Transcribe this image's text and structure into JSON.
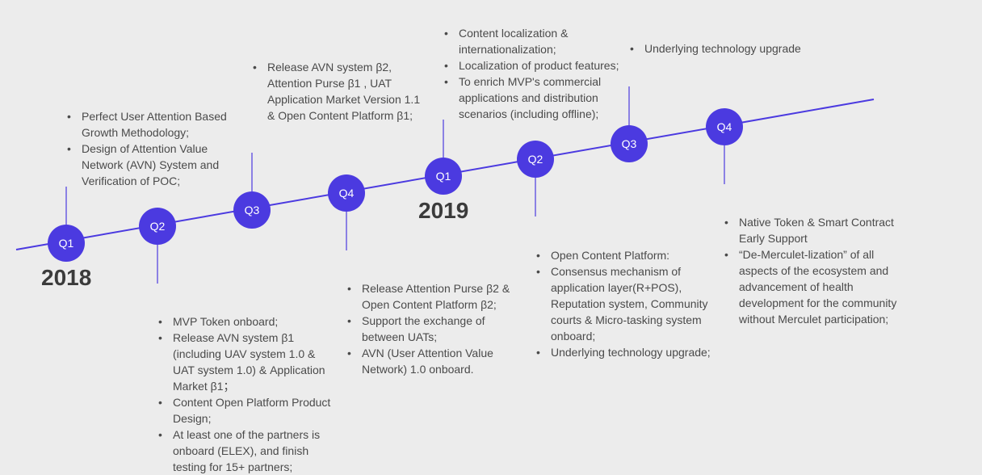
{
  "colors": {
    "accent": "#4b3ae0",
    "background": "#ececec",
    "text": "#4a4a4a"
  },
  "years": {
    "y2018": "2018",
    "y2019": "2019"
  },
  "quarters": {
    "q1_2018": "Q1",
    "q2_2018": "Q2",
    "q3_2018": "Q3",
    "q4_2018": "Q4",
    "q1_2019": "Q1",
    "q2_2019": "Q2",
    "q3_2019": "Q3",
    "q4_2019": "Q4"
  },
  "notes": {
    "q1_2018": [
      "Perfect User Attention Based Growth Methodology;",
      "Design of Attention Value Network (AVN) System and Verification of POC;"
    ],
    "q2_2018": [
      "MVP Token onboard;",
      "Release AVN system β1 (including UAV system 1.0 & UAT system 1.0) & Application Market β1；",
      "Content Open Platform Product Design;",
      "At least one of the partners is onboard (ELEX), and finish testing for 15+ partners;"
    ],
    "q3_2018": [
      "Release AVN system β2, Attention Purse β1 , UAT Application Market Version 1.1 & Open Content Platform β1;"
    ],
    "q4_2018": [
      "Release Attention Purse β2 & Open Content Platform β2;",
      "Support the exchange of between UATs;",
      "AVN (User Attention Value Network) 1.0 onboard."
    ],
    "q1_2019": [
      "Content localization & internationalization;",
      "Localization of product features;",
      "To enrich MVP's commercial applications and distribution scenarios (including offline);"
    ],
    "q2_2019": [
      "Open Content Platform:",
      "Consensus mechanism of application layer(R+POS), Reputation system, Community courts & Micro-tasking system onboard;",
      "Underlying technology upgrade;"
    ],
    "q3_2019": [
      "Underlying technology upgrade"
    ],
    "q4_2019": [
      "Native Token & Smart Contract Early Support",
      "“De-Merculet-lization” of all aspects of the ecosystem and advancement of health development for the community without Merculet participation;"
    ]
  }
}
